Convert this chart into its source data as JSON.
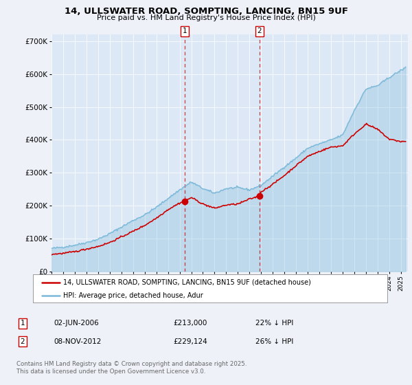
{
  "title_line1": "14, ULLSWATER ROAD, SOMPTING, LANCING, BN15 9UF",
  "title_line2": "Price paid vs. HM Land Registry's House Price Index (HPI)",
  "ylim": [
    0,
    720000
  ],
  "yticks": [
    0,
    100000,
    200000,
    300000,
    400000,
    500000,
    600000,
    700000
  ],
  "ytick_labels": [
    "£0",
    "£100K",
    "£200K",
    "£300K",
    "£400K",
    "£500K",
    "£600K",
    "£700K"
  ],
  "background_color": "#eef2f8",
  "plot_bg_color": "#dce8f5",
  "legend_label_red": "14, ULLSWATER ROAD, SOMPTING, LANCING, BN15 9UF (detached house)",
  "legend_label_blue": "HPI: Average price, detached house, Adur",
  "transaction1_date": "02-JUN-2006",
  "transaction1_price": "£213,000",
  "transaction1_hpi": "22% ↓ HPI",
  "transaction2_date": "08-NOV-2012",
  "transaction2_price": "£229,124",
  "transaction2_hpi": "26% ↓ HPI",
  "footer": "Contains HM Land Registry data © Crown copyright and database right 2025.\nThis data is licensed under the Open Government Licence v3.0.",
  "vline1_x": 2006.42,
  "vline2_x": 2012.85,
  "marker1_x": 2006.42,
  "marker1_y": 213000,
  "marker2_x": 2012.85,
  "marker2_y": 229124,
  "red_color": "#cc0000",
  "blue_color": "#7ab8d9",
  "vline_color": "#cc0000",
  "xlim_left": 1995.0,
  "xlim_right": 2025.6
}
